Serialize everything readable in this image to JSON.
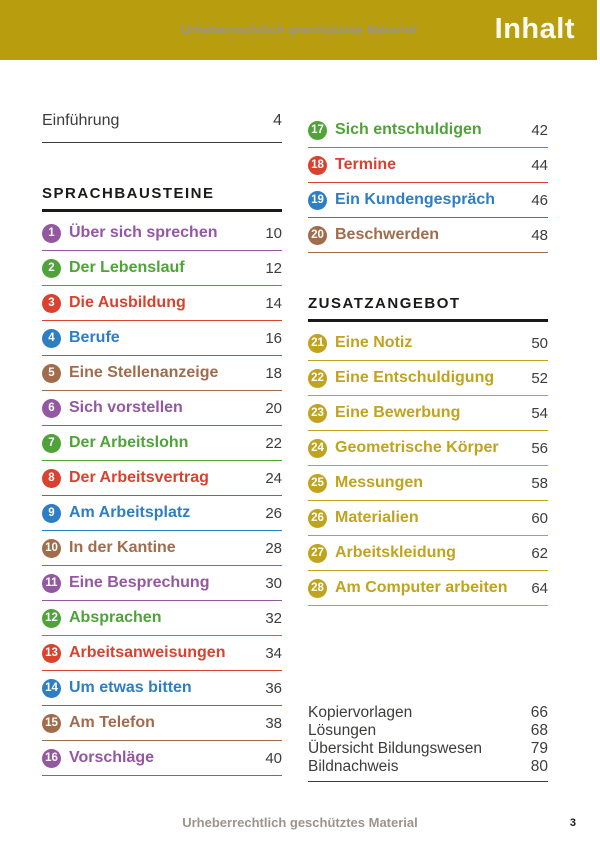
{
  "header": {
    "watermark": "Urheberrechtlich geschütztes Material",
    "title": "Inhalt"
  },
  "footer": {
    "watermark": "Urheberrechtlich geschütztes Material",
    "page_number": "3"
  },
  "colors": {
    "bar": "#b89e0f",
    "purple": "#9457a1",
    "green": "#4fa339",
    "red": "#d8422e",
    "blue": "#2d7ec3",
    "brown": "#a16c4b",
    "gold": "#c0a31f",
    "text_dark": "#3c3c3b",
    "header_black": "#1a1a18",
    "watermark_grey": "#9c948a"
  },
  "intro": {
    "label": "Einführung",
    "page": "4"
  },
  "sections": [
    {
      "title": "SPRACHBAUSTEINE",
      "items": [
        {
          "num": "1",
          "label": "Über sich sprechen",
          "page": "10",
          "color": "purple"
        },
        {
          "num": "2",
          "label": "Der Lebenslauf",
          "page": "12",
          "color": "green"
        },
        {
          "num": "3",
          "label": "Die Ausbildung",
          "page": "14",
          "color": "red"
        },
        {
          "num": "4",
          "label": "Berufe",
          "page": "16",
          "color": "blue"
        },
        {
          "num": "5",
          "label": "Eine Stellenanzeige",
          "page": "18",
          "color": "brown"
        },
        {
          "num": "6",
          "label": "Sich vorstellen",
          "page": "20",
          "color": "purple"
        },
        {
          "num": "7",
          "label": "Der Arbeitslohn",
          "page": "22",
          "color": "green"
        },
        {
          "num": "8",
          "label": "Der Arbeitsvertrag",
          "page": "24",
          "color": "red"
        },
        {
          "num": "9",
          "label": "Am Arbeitsplatz",
          "page": "26",
          "color": "blue"
        },
        {
          "num": "10",
          "label": "In der Kantine",
          "page": "28",
          "color": "brown"
        },
        {
          "num": "11",
          "label": "Eine Besprechung",
          "page": "30",
          "color": "purple"
        },
        {
          "num": "12",
          "label": "Absprachen",
          "page": "32",
          "color": "green"
        },
        {
          "num": "13",
          "label": "Arbeitsanweisungen",
          "page": "34",
          "color": "red"
        },
        {
          "num": "14",
          "label": "Um etwas bitten",
          "page": "36",
          "color": "blue"
        },
        {
          "num": "15",
          "label": "Am Telefon",
          "page": "38",
          "color": "brown"
        },
        {
          "num": "16",
          "label": "Vorschläge",
          "page": "40",
          "color": "purple"
        },
        {
          "num": "17",
          "label": "Sich entschuldigen",
          "page": "42",
          "color": "green"
        },
        {
          "num": "18",
          "label": "Termine",
          "page": "44",
          "color": "red"
        },
        {
          "num": "19",
          "label": "Ein Kundengespräch",
          "page": "46",
          "color": "blue"
        },
        {
          "num": "20",
          "label": "Beschwerden",
          "page": "48",
          "color": "brown"
        }
      ]
    },
    {
      "title": "ZUSATZANGEBOT",
      "items": [
        {
          "num": "21",
          "label": "Eine Notiz",
          "page": "50",
          "color": "gold"
        },
        {
          "num": "22",
          "label": "Eine Entschuldigung",
          "page": "52",
          "color": "gold"
        },
        {
          "num": "23",
          "label": "Eine Bewerbung",
          "page": "54",
          "color": "gold"
        },
        {
          "num": "24",
          "label": "Geometrische Körper",
          "page": "56",
          "color": "gold"
        },
        {
          "num": "25",
          "label": "Messungen",
          "page": "58",
          "color": "gold"
        },
        {
          "num": "26",
          "label": "Materialien",
          "page": "60",
          "color": "gold"
        },
        {
          "num": "27",
          "label": "Arbeitskleidung",
          "page": "62",
          "color": "gold"
        },
        {
          "num": "28",
          "label": "Am Computer arbeiten",
          "page": "64",
          "color": "gold"
        }
      ]
    }
  ],
  "appendix": [
    {
      "label": "Kopiervorlagen",
      "page": "66"
    },
    {
      "label": "Lösungen",
      "page": "68"
    },
    {
      "label": "Übersicht Bildungswesen",
      "page": "79"
    },
    {
      "label": "Bildnachweis",
      "page": "80"
    }
  ]
}
